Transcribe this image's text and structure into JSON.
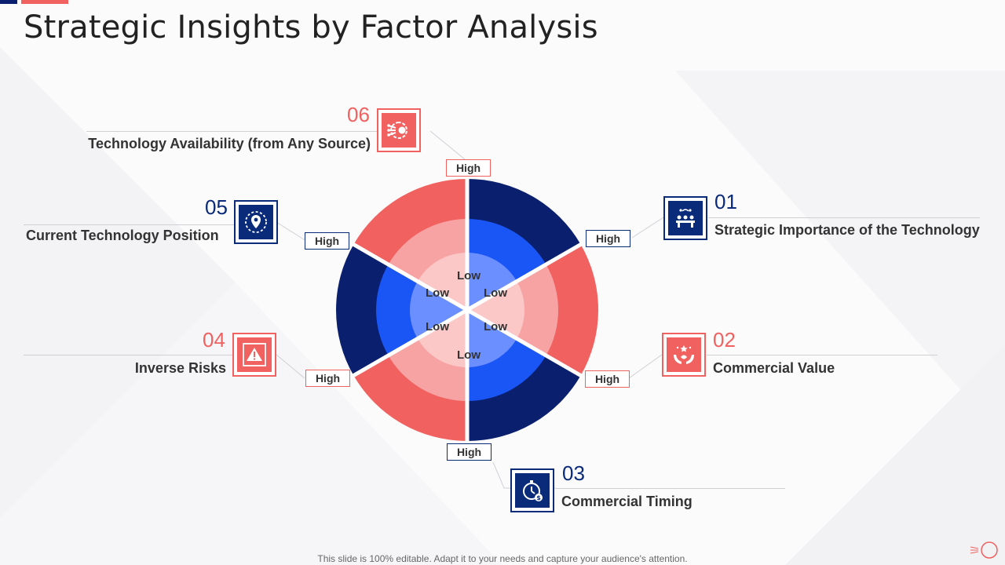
{
  "slide": {
    "title": "Strategic Insights by Factor Analysis",
    "footer": "This slide is 100% editable. Adapt it to your needs and capture your audience's attention."
  },
  "colors": {
    "navy_outer": "#0a1f6e",
    "navy_mid": "#1a55f5",
    "navy_inner": "#6c8fff",
    "coral_outer": "#f06160",
    "coral_mid": "#f8a3a3",
    "coral_inner": "#fbc7c7",
    "center": "#f0f0f2"
  },
  "factors": [
    {
      "number": "01",
      "label": "Strategic Importance of the Technology",
      "high_label": "High",
      "low_label": "Low",
      "icon": "team-meeting-icon",
      "color": "navy"
    },
    {
      "number": "02",
      "label": "Commercial Value",
      "high_label": "High",
      "low_label": "Low",
      "icon": "hands-value-icon",
      "color": "coral"
    },
    {
      "number": "03",
      "label": "Commercial Timing",
      "high_label": "High",
      "low_label": "Low",
      "icon": "stopwatch-dollar-icon",
      "color": "navy"
    },
    {
      "number": "04",
      "label": "Inverse Risks",
      "high_label": "High",
      "low_label": "Low",
      "icon": "warning-icon",
      "color": "coral"
    },
    {
      "number": "05",
      "label": "Current Technology Position",
      "high_label": "High",
      "low_label": "Low",
      "icon": "location-pin-icon",
      "color": "navy"
    },
    {
      "number": "06",
      "label": "Technology Availability (from Any Source)",
      "high_label": "High",
      "low_label": "Low",
      "icon": "gear-network-icon",
      "color": "coral"
    }
  ]
}
